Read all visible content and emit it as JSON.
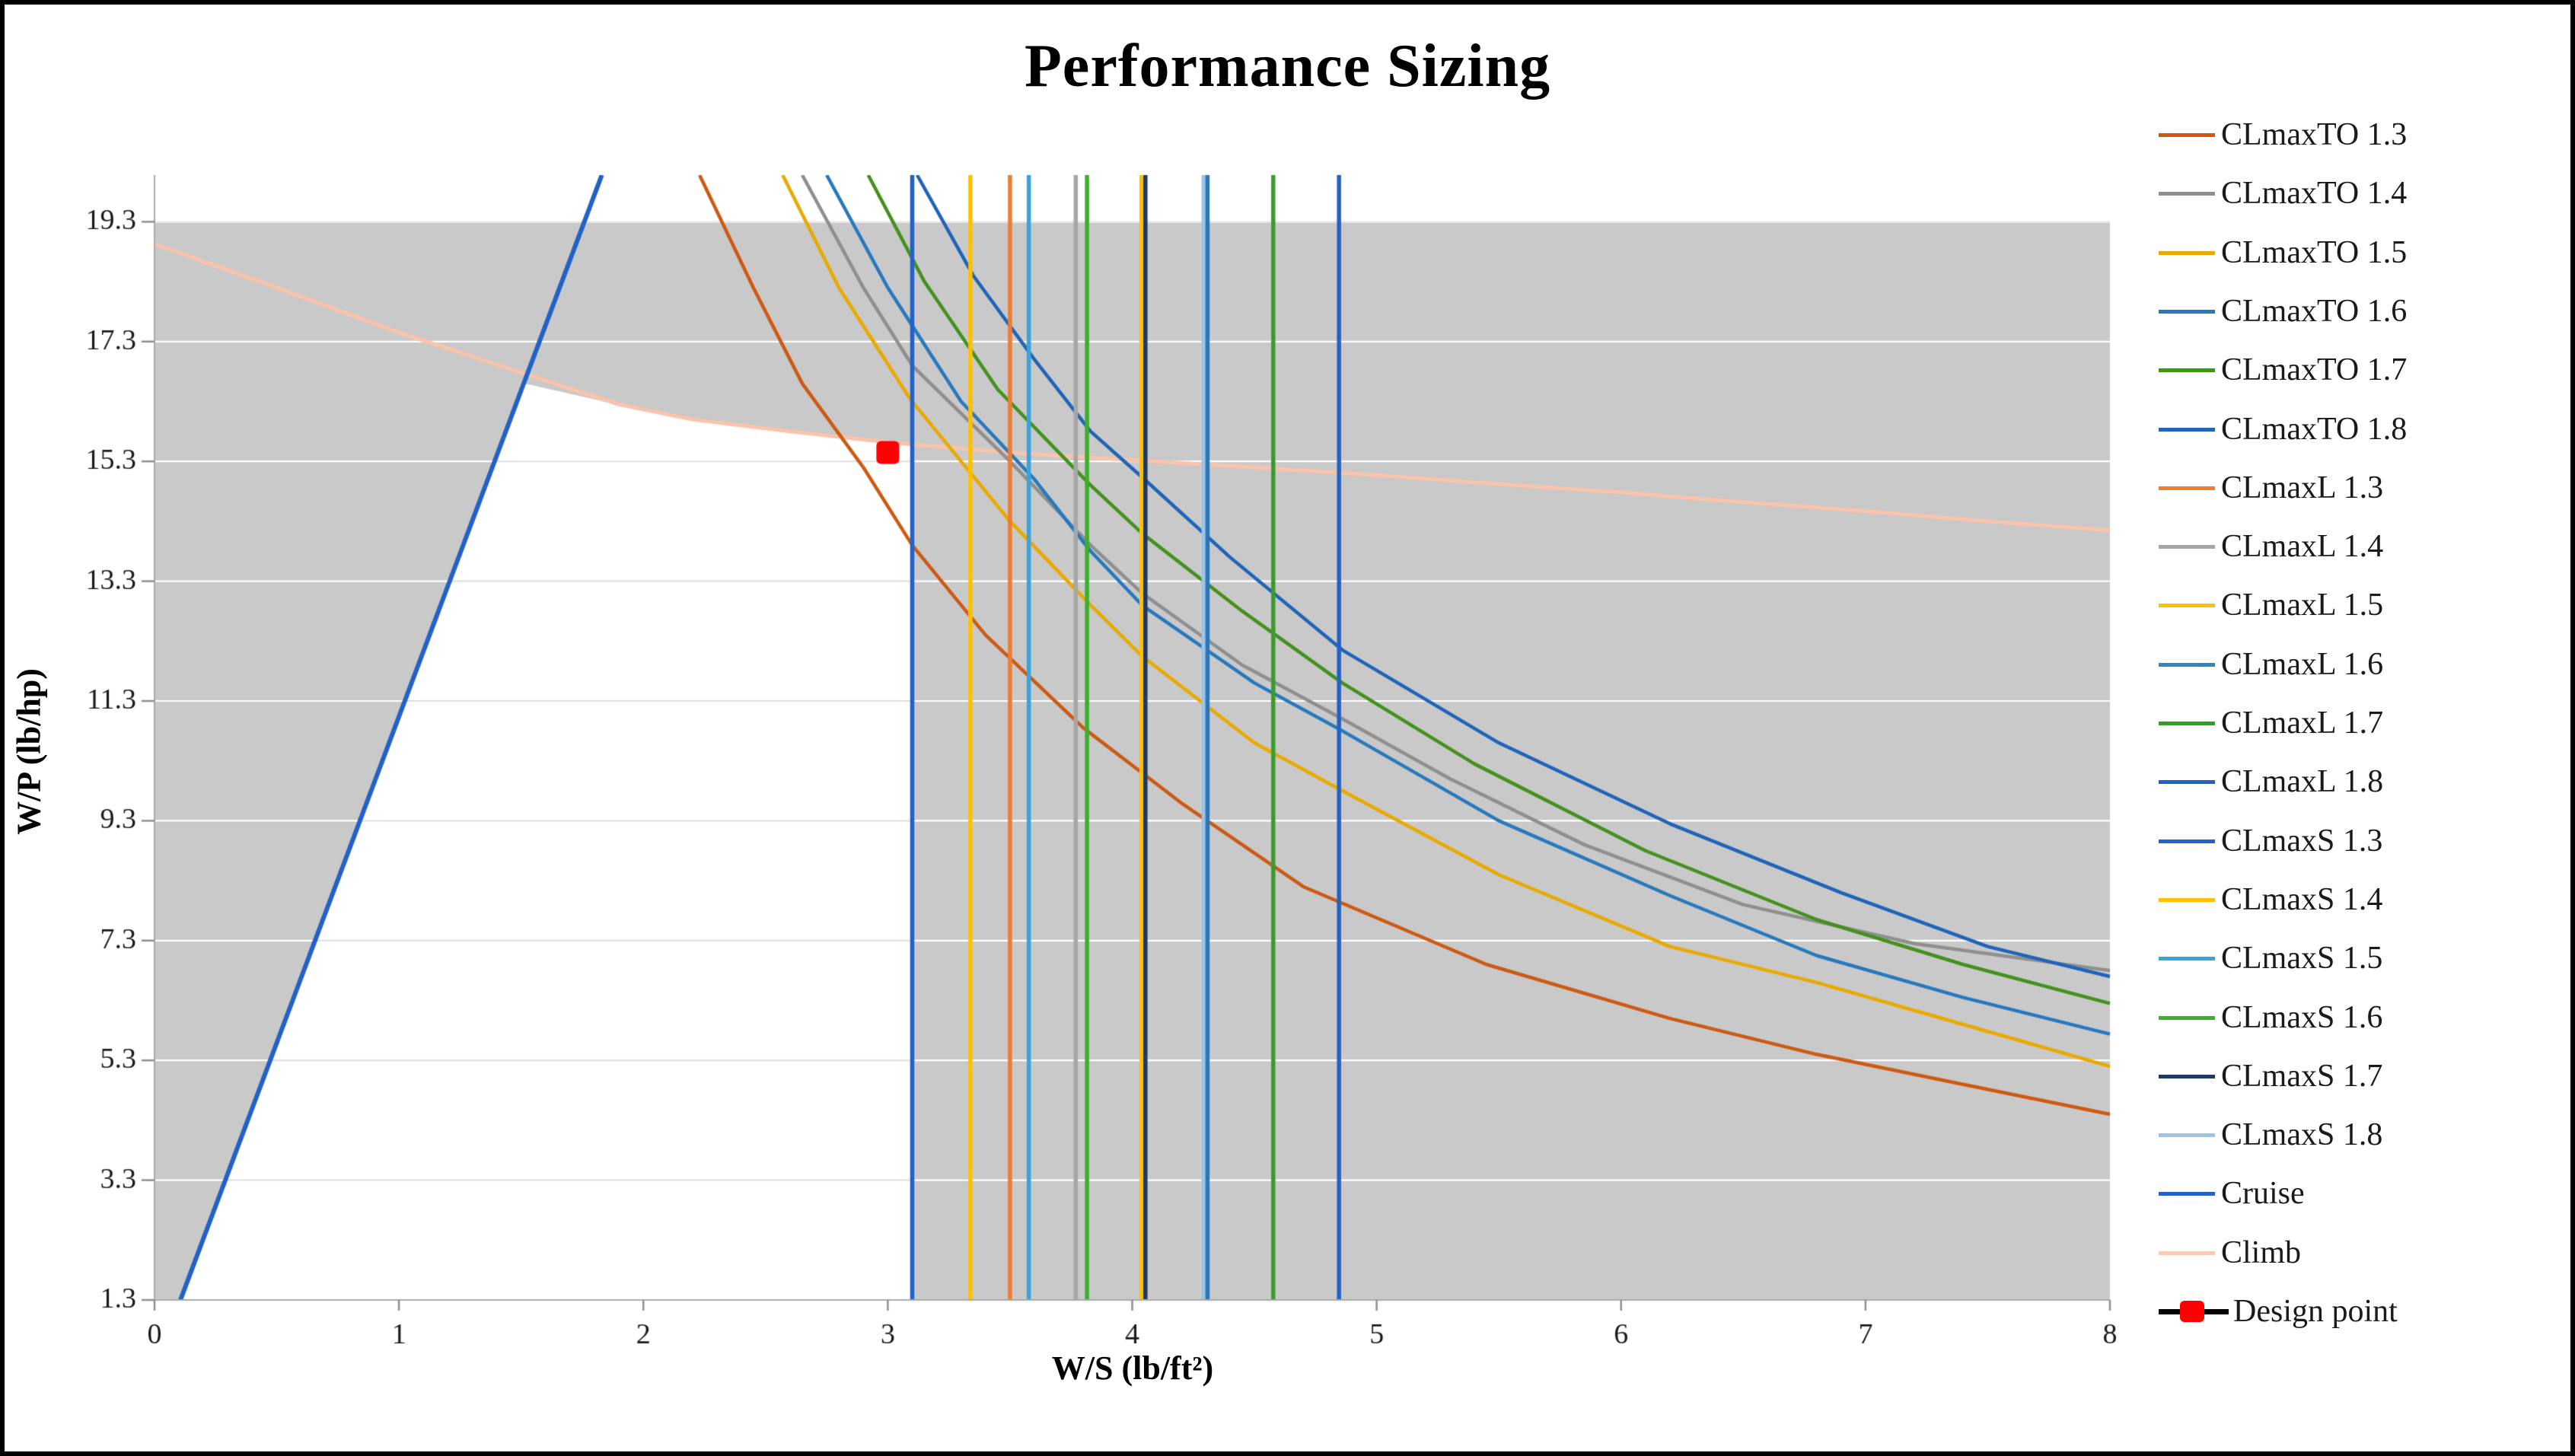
{
  "figure": {
    "title": "Performance Sizing"
  },
  "axes": {
    "x_label": "W/S (lb/ft²)",
    "y_label": "W/P (lb/hp)",
    "x_ticks": [
      0,
      1,
      2,
      3,
      4,
      5,
      6,
      7,
      8
    ],
    "y_ticks": [
      1.3,
      3.3,
      5.3,
      7.3,
      9.3,
      11.3,
      13.3,
      15.3,
      17.3,
      19.3
    ]
  },
  "chart_data": {
    "type": "line",
    "title": "Performance Sizing",
    "xlabel": "W/S (lb/ft²)",
    "ylabel": "W/P (lb/hp)",
    "xlim": [
      0,
      8
    ],
    "ylim": [
      1.3,
      20.08
    ],
    "grid": "horizontal",
    "legend_position": "right",
    "shaded_region": {
      "color": "#C9C9C9",
      "top": 19.3,
      "note": "infeasible area; white feasible polygon bounded by cruise line, climb line and CLmaxS 1.3 stall limit",
      "feasible_polygon": [
        [
          0.106,
          1.3
        ],
        [
          1.515,
          16.6
        ],
        [
          2.0,
          16.15
        ],
        [
          2.3,
          15.95
        ],
        [
          2.7,
          15.75
        ],
        [
          3.0,
          15.62
        ],
        [
          3.1,
          15.58
        ],
        [
          3.1,
          1.3
        ]
      ]
    },
    "series": [
      {
        "name": "Climb",
        "type": "line",
        "color": "#FAC3AC",
        "width": 5,
        "points": [
          [
            0,
            18.93
          ],
          [
            0.5,
            18.2
          ],
          [
            1.0,
            17.45
          ],
          [
            1.5,
            16.78
          ],
          [
            1.9,
            16.25
          ],
          [
            2.2,
            16.0
          ],
          [
            2.6,
            15.8
          ],
          [
            3.0,
            15.62
          ],
          [
            3.5,
            15.45
          ],
          [
            4.0,
            15.32
          ],
          [
            4.5,
            15.2
          ],
          [
            5.0,
            15.07
          ],
          [
            5.5,
            14.92
          ],
          [
            6.0,
            14.78
          ],
          [
            6.5,
            14.62
          ],
          [
            7.0,
            14.47
          ],
          [
            7.5,
            14.3
          ],
          [
            8.0,
            14.15
          ]
        ]
      },
      {
        "name": "Cruise",
        "type": "line",
        "color": "#2262C6",
        "width": 6,
        "points": [
          [
            0.106,
            1.3
          ],
          [
            1.83,
            20.08
          ]
        ]
      },
      {
        "name": "CLmaxTO 1.3",
        "type": "curve",
        "color": "#CC5A13",
        "width": 4.5,
        "points": [
          [
            2.23,
            20.08
          ],
          [
            2.45,
            18.2
          ],
          [
            2.65,
            16.6
          ],
          [
            2.9,
            15.2
          ],
          [
            3.1,
            13.9
          ],
          [
            3.4,
            12.4
          ],
          [
            3.8,
            10.85
          ],
          [
            4.2,
            9.6
          ],
          [
            4.7,
            8.2
          ],
          [
            5.45,
            6.9
          ],
          [
            6.2,
            6.0
          ],
          [
            6.8,
            5.4
          ],
          [
            7.4,
            4.9
          ],
          [
            8,
            4.4
          ]
        ]
      },
      {
        "name": "CLmaxTO 1.4",
        "type": "curve",
        "color": "#8F8F8F",
        "width": 4.5,
        "points": [
          [
            2.65,
            20.08
          ],
          [
            2.9,
            18.2
          ],
          [
            3.1,
            16.9
          ],
          [
            3.5,
            15.3
          ],
          [
            3.83,
            13.9
          ],
          [
            4.04,
            13.1
          ],
          [
            4.45,
            11.9
          ],
          [
            4.86,
            11.0
          ],
          [
            5.3,
            10.0
          ],
          [
            5.85,
            8.9
          ],
          [
            6.5,
            7.9
          ],
          [
            7.2,
            7.25
          ],
          [
            8,
            6.8
          ]
        ]
      },
      {
        "name": "CLmaxTO 1.5",
        "type": "curve",
        "color": "#E8A900",
        "width": 4.5,
        "points": [
          [
            2.57,
            20.08
          ],
          [
            2.8,
            18.2
          ],
          [
            3.09,
            16.35
          ],
          [
            3.5,
            14.3
          ],
          [
            3.83,
            12.9
          ],
          [
            4.04,
            12.05
          ],
          [
            4.5,
            10.6
          ],
          [
            4.86,
            9.8
          ],
          [
            5.5,
            8.4
          ],
          [
            6.2,
            7.2
          ],
          [
            6.8,
            6.6
          ],
          [
            7.4,
            5.9
          ],
          [
            8,
            5.2
          ]
        ]
      },
      {
        "name": "CLmaxTO 1.6",
        "type": "curve",
        "color": "#2779BE",
        "width": 4.5,
        "points": [
          [
            2.75,
            20.08
          ],
          [
            3.0,
            18.2
          ],
          [
            3.3,
            16.3
          ],
          [
            3.6,
            15.0
          ],
          [
            3.83,
            13.8
          ],
          [
            4.04,
            12.9
          ],
          [
            4.5,
            11.6
          ],
          [
            4.86,
            10.8
          ],
          [
            5.5,
            9.3
          ],
          [
            6.2,
            8.05
          ],
          [
            6.8,
            7.05
          ],
          [
            7.4,
            6.35
          ],
          [
            8,
            5.74
          ]
        ]
      },
      {
        "name": "CLmaxTO 1.7",
        "type": "curve",
        "color": "#44911E",
        "width": 4.5,
        "points": [
          [
            2.92,
            20.08
          ],
          [
            3.15,
            18.3
          ],
          [
            3.45,
            16.5
          ],
          [
            3.83,
            14.9
          ],
          [
            4.04,
            14.1
          ],
          [
            4.45,
            12.8
          ],
          [
            4.86,
            11.6
          ],
          [
            5.4,
            10.25
          ],
          [
            6.1,
            8.8
          ],
          [
            6.8,
            7.65
          ],
          [
            7.4,
            6.9
          ],
          [
            8,
            6.25
          ]
        ]
      },
      {
        "name": "CLmaxTO 1.8",
        "type": "curve",
        "color": "#1F64B8",
        "width": 4.5,
        "points": [
          [
            3.12,
            20.08
          ],
          [
            3.35,
            18.4
          ],
          [
            3.6,
            17.0
          ],
          [
            3.83,
            15.8
          ],
          [
            4.05,
            15.0
          ],
          [
            4.4,
            13.7
          ],
          [
            4.86,
            12.15
          ],
          [
            5.5,
            10.6
          ],
          [
            6.2,
            9.25
          ],
          [
            6.9,
            8.1
          ],
          [
            7.5,
            7.2
          ],
          [
            8,
            6.7
          ]
        ]
      },
      {
        "name": "CLmaxS 1.3",
        "type": "vline",
        "color": "#2262C6",
        "width": 5.5,
        "x": 3.1
      },
      {
        "name": "CLmaxS 1.4",
        "type": "vline",
        "color": "#FFC000",
        "width": 5.5,
        "x": 3.338
      },
      {
        "name": "CLmaxL 1.3",
        "type": "vline",
        "color": "#ED7D31",
        "width": 5.5,
        "x": 3.5
      },
      {
        "name": "CLmaxS 1.5",
        "type": "vline",
        "color": "#38A3DC",
        "width": 5.5,
        "x": 3.577
      },
      {
        "name": "CLmaxL 1.4",
        "type": "vline",
        "color": "#A6A6A6",
        "width": 5.5,
        "x": 3.769
      },
      {
        "name": "CLmaxS 1.6",
        "type": "vline",
        "color": "#3FAE2F",
        "width": 5.5,
        "x": 3.815
      },
      {
        "name": "CLmaxL 1.5",
        "type": "vline",
        "color": "#FFC000",
        "width": 5.5,
        "x": 4.038
      },
      {
        "name": "CLmaxS 1.7",
        "type": "vline",
        "color": "#1F3864",
        "width": 5.5,
        "x": 4.054
      },
      {
        "name": "CLmaxS 1.8",
        "type": "vline",
        "color": "#9DC3E6",
        "width": 5.5,
        "x": 4.292
      },
      {
        "name": "CLmaxL 1.6",
        "type": "vline",
        "color": "#2E75B6",
        "width": 5.5,
        "x": 4.308
      },
      {
        "name": "CLmaxL 1.7",
        "type": "vline",
        "color": "#3E9A30",
        "width": 5.5,
        "x": 4.577
      },
      {
        "name": "CLmaxL 1.8",
        "type": "vline",
        "color": "#2262C6",
        "width": 5.5,
        "x": 4.846
      },
      {
        "name": "Design point",
        "type": "point",
        "color": "#FF0000",
        "x": 3.0,
        "y": 15.45,
        "marker": "square",
        "size": 30
      }
    ]
  },
  "legend": {
    "items": [
      {
        "label": "CLmaxTO 1.3",
        "color": "#CC5A13",
        "type": "line"
      },
      {
        "label": "CLmaxTO 1.4",
        "color": "#8F8F8F",
        "type": "line"
      },
      {
        "label": "CLmaxTO 1.5",
        "color": "#E8A900",
        "type": "line"
      },
      {
        "label": "CLmaxTO 1.6",
        "color": "#2779BE",
        "type": "line"
      },
      {
        "label": "CLmaxTO 1.7",
        "color": "#44911E",
        "type": "line"
      },
      {
        "label": "CLmaxTO 1.8",
        "color": "#1F64B8",
        "type": "line"
      },
      {
        "label": "CLmaxL 1.3",
        "color": "#ED7D31",
        "type": "line"
      },
      {
        "label": "CLmaxL 1.4",
        "color": "#A6A6A6",
        "type": "line"
      },
      {
        "label": "CLmaxL 1.5",
        "color": "#FFC000",
        "type": "line"
      },
      {
        "label": "CLmaxL 1.6",
        "color": "#2E86C8",
        "type": "line"
      },
      {
        "label": "CLmaxL 1.7",
        "color": "#3C9631",
        "type": "line"
      },
      {
        "label": "CLmaxL 1.8",
        "color": "#2262C6",
        "type": "line"
      },
      {
        "label": "CLmaxS 1.3",
        "color": "#2262C6",
        "type": "line"
      },
      {
        "label": "CLmaxS 1.4",
        "color": "#FFC000",
        "type": "line"
      },
      {
        "label": "CLmaxS 1.5",
        "color": "#38A3DC",
        "type": "line"
      },
      {
        "label": "CLmaxS 1.6",
        "color": "#3FAE2F",
        "type": "line"
      },
      {
        "label": "CLmaxS 1.7",
        "color": "#1F3864",
        "type": "line"
      },
      {
        "label": "CLmaxS 1.8",
        "color": "#9DC3E6",
        "type": "line"
      },
      {
        "label": "Cruise",
        "color": "#2262C6",
        "type": "line"
      },
      {
        "label": "Climb",
        "color": "#FBC9B4",
        "type": "line"
      },
      {
        "label": "Design point",
        "color": "#FF0000",
        "type": "design"
      }
    ]
  },
  "colors": {
    "shaded_fill": "#C9C9C9",
    "grid_on_white": "#DEDEDE",
    "grid_on_gray": "#FFFFFF",
    "axis_line": "#ABABAB",
    "tick": "#8F8F8F",
    "design_marker": "#FF0000",
    "design_bar": "#000000"
  }
}
